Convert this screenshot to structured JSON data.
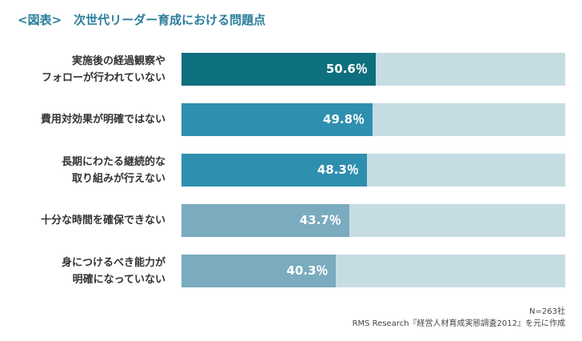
{
  "chart_data": {
    "type": "bar",
    "orientation": "horizontal",
    "title": "<図表>　次世代リーダー育成における問題点",
    "categories": [
      "実施後の経過観察や\nフォローが行われていない",
      "費用対効果が明確ではない",
      "長期にわたる継続的な\n取り組みが行えない",
      "十分な時間を確保できない",
      "身につけるべき能力が\n明確になっていない"
    ],
    "values": [
      50.6,
      49.8,
      48.3,
      43.7,
      40.3
    ],
    "value_labels": [
      "50.6％",
      "49.8％",
      "48.3％",
      "43.7％",
      "40.3％"
    ],
    "colors": [
      "#0e6f7e",
      "#2f8fae",
      "#2f8fae",
      "#7aabbf",
      "#7aabbf"
    ],
    "track_color": "#c6dce3",
    "xlim": [
      0,
      100
    ],
    "notes": [
      "N=263社",
      "RMS Research『経営人材育成実態調査2012』を元に作成"
    ]
  }
}
